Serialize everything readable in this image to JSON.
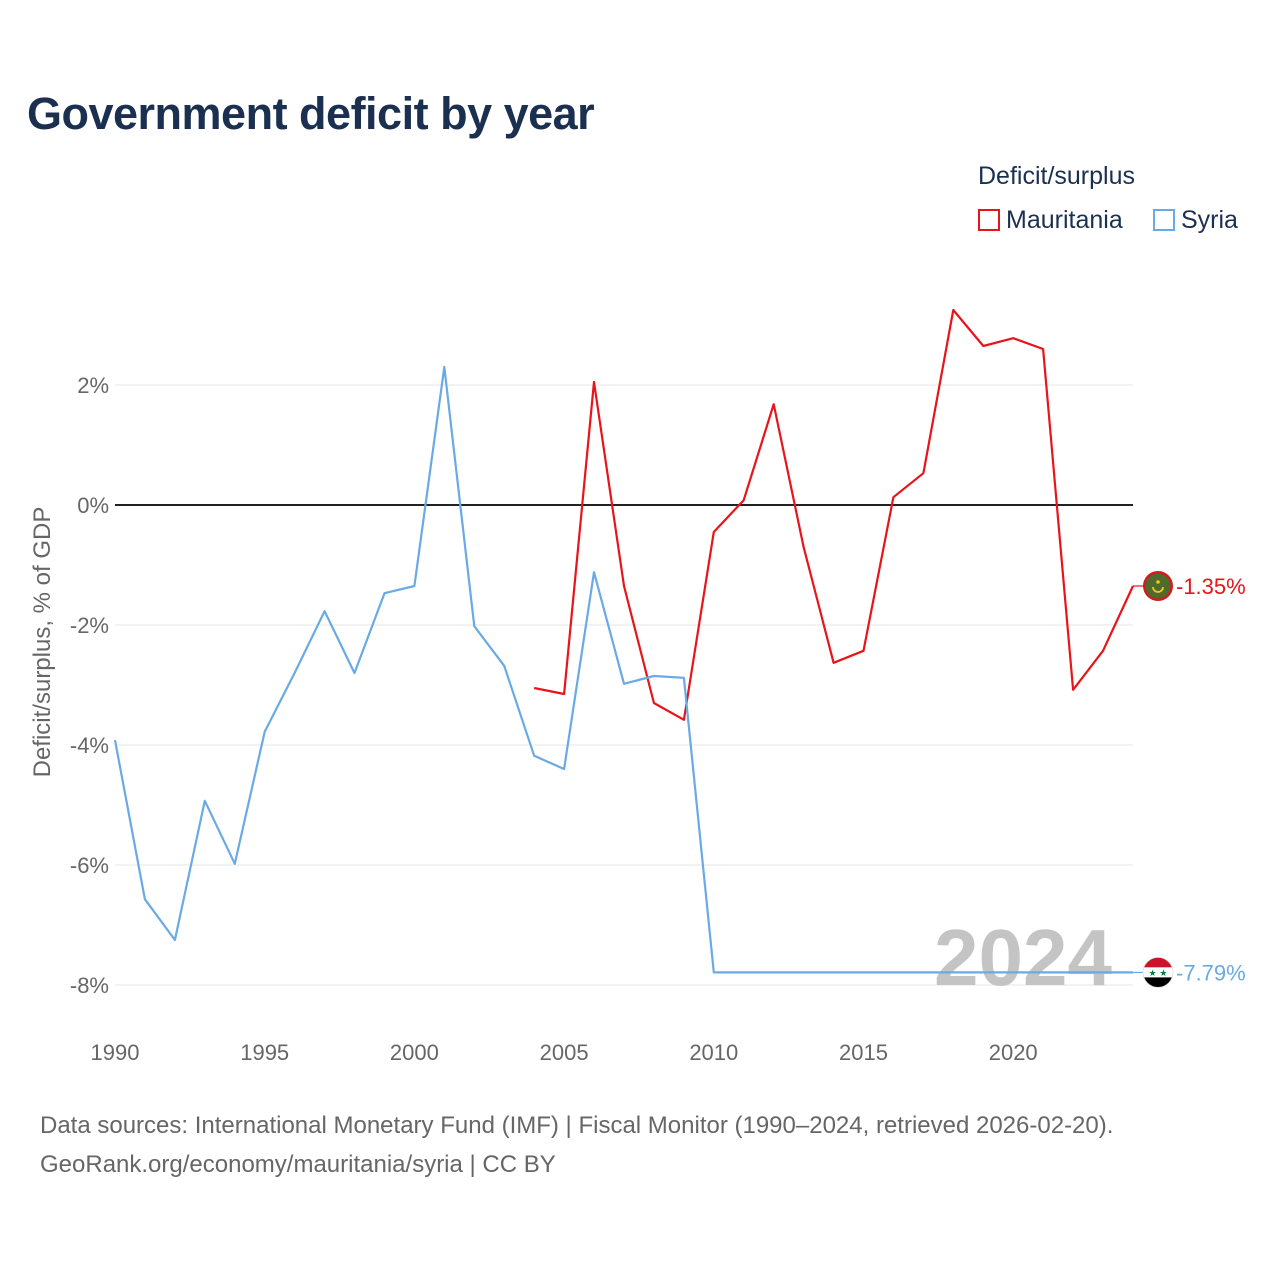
{
  "title": "Government deficit by year",
  "legend": {
    "title": "Deficit/surplus",
    "items": [
      {
        "name": "Mauritania",
        "color": "#e8141a"
      },
      {
        "name": "Syria",
        "color": "#6aaae4"
      }
    ]
  },
  "chart_data": {
    "type": "line",
    "title": "Government deficit by year",
    "xlabel": "",
    "ylabel": "Deficit/surplus, % of GDP",
    "xlim": [
      1990,
      2024
    ],
    "ylim": [
      -8.7,
      3.6
    ],
    "x_ticks": [
      1990,
      1995,
      2000,
      2005,
      2010,
      2015,
      2020
    ],
    "x_tick_labels": [
      "1990",
      "1995",
      "2000",
      "2005",
      "2010",
      "2015",
      "2020"
    ],
    "y_ticks": [
      2,
      0,
      -2,
      -4,
      -6,
      -8
    ],
    "y_tick_labels": [
      "2%",
      "0%",
      "-2%",
      "-4%",
      "-6%",
      "-8%"
    ],
    "year_watermark": "2024",
    "series": [
      {
        "name": "Mauritania",
        "color": "#e8141a",
        "x": [
          2004,
          2005,
          2006,
          2007,
          2008,
          2009,
          2010,
          2011,
          2012,
          2013,
          2014,
          2015,
          2016,
          2017,
          2018,
          2019,
          2020,
          2021,
          2022,
          2023,
          2024
        ],
        "values": [
          -3.05,
          -3.15,
          2.05,
          -1.35,
          -3.3,
          -3.58,
          -0.45,
          0.08,
          1.68,
          -0.7,
          -2.63,
          -2.43,
          0.13,
          0.53,
          3.25,
          2.65,
          2.78,
          2.6,
          -3.08,
          -2.43,
          -1.35
        ],
        "end_label": "-1.35%",
        "flag": "mauritania-flag"
      },
      {
        "name": "Syria",
        "color": "#6aaae4",
        "x": [
          1990,
          1991,
          1992,
          1993,
          1994,
          1995,
          1996,
          1997,
          1998,
          1999,
          2000,
          2001,
          2002,
          2003,
          2004,
          2005,
          2006,
          2007,
          2008,
          2009,
          2010,
          2011,
          2012,
          2013,
          2014,
          2015,
          2016,
          2017,
          2018,
          2019,
          2020,
          2021,
          2022,
          2023,
          2024
        ],
        "values": [
          -3.92,
          -6.57,
          -7.25,
          -4.93,
          -5.98,
          -3.78,
          -2.8,
          -1.77,
          -2.8,
          -1.47,
          -1.35,
          2.3,
          -2.02,
          -2.68,
          -4.18,
          -4.4,
          -1.12,
          -2.98,
          -2.85,
          -2.88,
          -7.79,
          -7.79,
          -7.79,
          -7.79,
          -7.79,
          -7.79,
          -7.79,
          -7.79,
          -7.79,
          -7.79,
          -7.79,
          -7.79,
          -7.79,
          -7.79,
          -7.79
        ],
        "end_label": "-7.79%",
        "flag": "syria-flag"
      }
    ]
  },
  "footer": {
    "line1": "Data sources: International Monetary Fund (IMF) | Fiscal Monitor (1990–2024, retrieved 2026-02-20).",
    "line2": "GeoRank.org/economy/mauritania/syria | CC BY"
  }
}
